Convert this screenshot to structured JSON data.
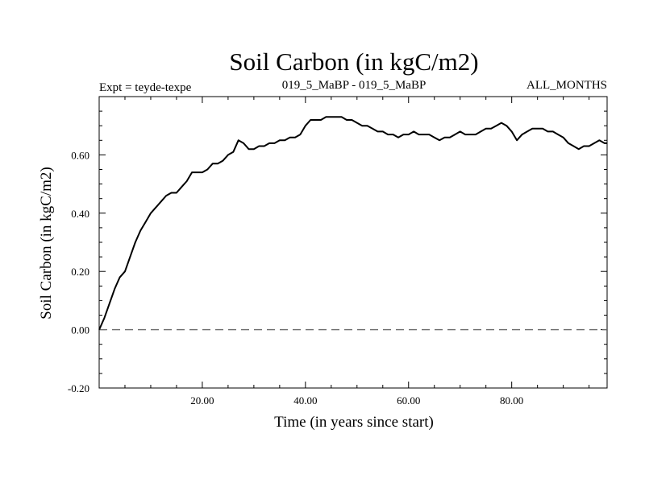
{
  "chart_data": {
    "type": "line",
    "title": "Soil Carbon (in kgC/m2)",
    "subtitle_left": "Expt = teyde-texpe",
    "subtitle_center": "019_5_MaBP - 019_5_MaBP",
    "subtitle_right": "ALL_MONTHS",
    "xlabel": "Time (in years since start)",
    "ylabel": "Soil Carbon (in kgC/m2)",
    "xlim": [
      0,
      98.5
    ],
    "ylim": [
      -0.2,
      0.8
    ],
    "x_ticks": [
      {
        "value": 20,
        "label": "20.00"
      },
      {
        "value": 40,
        "label": "40.00"
      },
      {
        "value": 60,
        "label": "60.00"
      },
      {
        "value": 80,
        "label": "80.00"
      }
    ],
    "y_ticks": [
      {
        "value": -0.2,
        "label": "-0.20"
      },
      {
        "value": 0.0,
        "label": "0.00"
      },
      {
        "value": 0.2,
        "label": "0.20"
      },
      {
        "value": 0.4,
        "label": "0.40"
      },
      {
        "value": 0.6,
        "label": "0.60"
      }
    ],
    "reference_line": {
      "y": 0.0,
      "style": "dashed"
    },
    "series": [
      {
        "name": "Soil Carbon",
        "x": [
          0,
          1,
          2,
          3,
          4,
          5,
          6,
          7,
          8,
          9,
          10,
          11,
          12,
          13,
          14,
          15,
          16,
          17,
          18,
          19,
          20,
          21,
          22,
          23,
          24,
          25,
          26,
          27,
          28,
          29,
          30,
          31,
          32,
          33,
          34,
          35,
          36,
          37,
          38,
          39,
          40,
          41,
          42,
          43,
          44,
          45,
          46,
          47,
          48,
          49,
          50,
          51,
          52,
          53,
          54,
          55,
          56,
          57,
          58,
          59,
          60,
          61,
          62,
          63,
          64,
          65,
          66,
          67,
          68,
          69,
          70,
          71,
          72,
          73,
          74,
          75,
          76,
          77,
          78,
          79,
          80,
          81,
          82,
          83,
          84,
          85,
          86,
          87,
          88,
          89,
          90,
          91,
          92,
          93,
          94,
          95,
          96,
          97,
          98,
          98.5
        ],
        "values": [
          0.0,
          0.04,
          0.09,
          0.14,
          0.18,
          0.2,
          0.25,
          0.3,
          0.34,
          0.37,
          0.4,
          0.42,
          0.44,
          0.46,
          0.47,
          0.47,
          0.49,
          0.51,
          0.54,
          0.54,
          0.54,
          0.55,
          0.57,
          0.57,
          0.58,
          0.6,
          0.61,
          0.65,
          0.64,
          0.62,
          0.62,
          0.63,
          0.63,
          0.64,
          0.64,
          0.65,
          0.65,
          0.66,
          0.66,
          0.67,
          0.7,
          0.72,
          0.72,
          0.72,
          0.73,
          0.73,
          0.73,
          0.73,
          0.72,
          0.72,
          0.71,
          0.7,
          0.7,
          0.69,
          0.68,
          0.68,
          0.67,
          0.67,
          0.66,
          0.67,
          0.67,
          0.68,
          0.67,
          0.67,
          0.67,
          0.66,
          0.65,
          0.66,
          0.66,
          0.67,
          0.68,
          0.67,
          0.67,
          0.67,
          0.68,
          0.69,
          0.69,
          0.7,
          0.71,
          0.7,
          0.68,
          0.65,
          0.67,
          0.68,
          0.69,
          0.69,
          0.69,
          0.68,
          0.68,
          0.67,
          0.66,
          0.64,
          0.63,
          0.62,
          0.63,
          0.63,
          0.64,
          0.65,
          0.64,
          0.64
        ]
      }
    ]
  }
}
